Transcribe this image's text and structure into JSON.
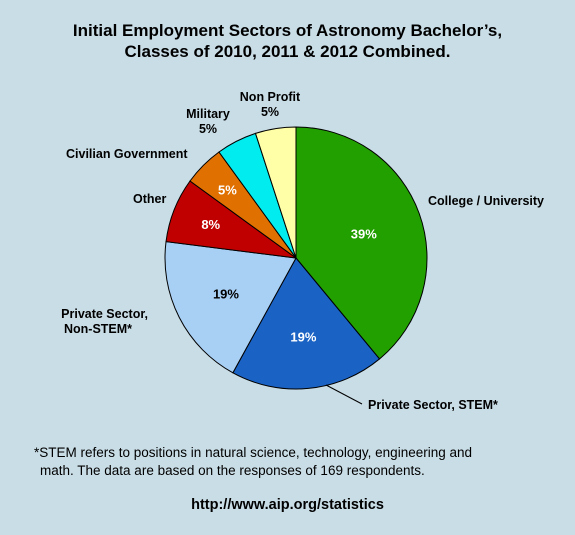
{
  "chart_data": {
    "type": "pie",
    "title_line1": "Initial Employment Sectors of Astronomy Bachelor’s,",
    "title_line2": "Classes of 2010, 2011 & 2012 Combined.",
    "slices": [
      {
        "label": "College / University",
        "value": 39,
        "value_label": "39%",
        "color": "#22a000",
        "text_color": "#ffffff"
      },
      {
        "label": "Private Sector, STEM*",
        "value": 19,
        "value_label": "19%",
        "color": "#1a62c4",
        "text_color": "#ffffff"
      },
      {
        "label_line1": "Private Sector,",
        "label_line2": "Non-STEM*",
        "value": 19,
        "value_label": "19%",
        "color": "#a8cff4",
        "text_color": "#000000"
      },
      {
        "label": "Other",
        "value": 8,
        "value_label": "8%",
        "color": "#c00000",
        "text_color": "#ffffff"
      },
      {
        "label": "Civilian Government",
        "value": 5,
        "value_label": "5%",
        "color": "#e07000",
        "text_color": "#ffffff"
      },
      {
        "label": "Military",
        "value": 5,
        "value_label": "5%",
        "color": "#00ecef",
        "text_color": "#000000"
      },
      {
        "label": "Non Profit",
        "value": 5,
        "value_label": "5%",
        "color": "#ffffa8",
        "text_color": "#000000"
      }
    ],
    "footnote_line1": "*STEM refers to positions in natural science, technology, engineering and",
    "footnote_line2": "math. The data are based on the responses of 169 respondents.",
    "source": "http://www.aip.org/statistics"
  }
}
